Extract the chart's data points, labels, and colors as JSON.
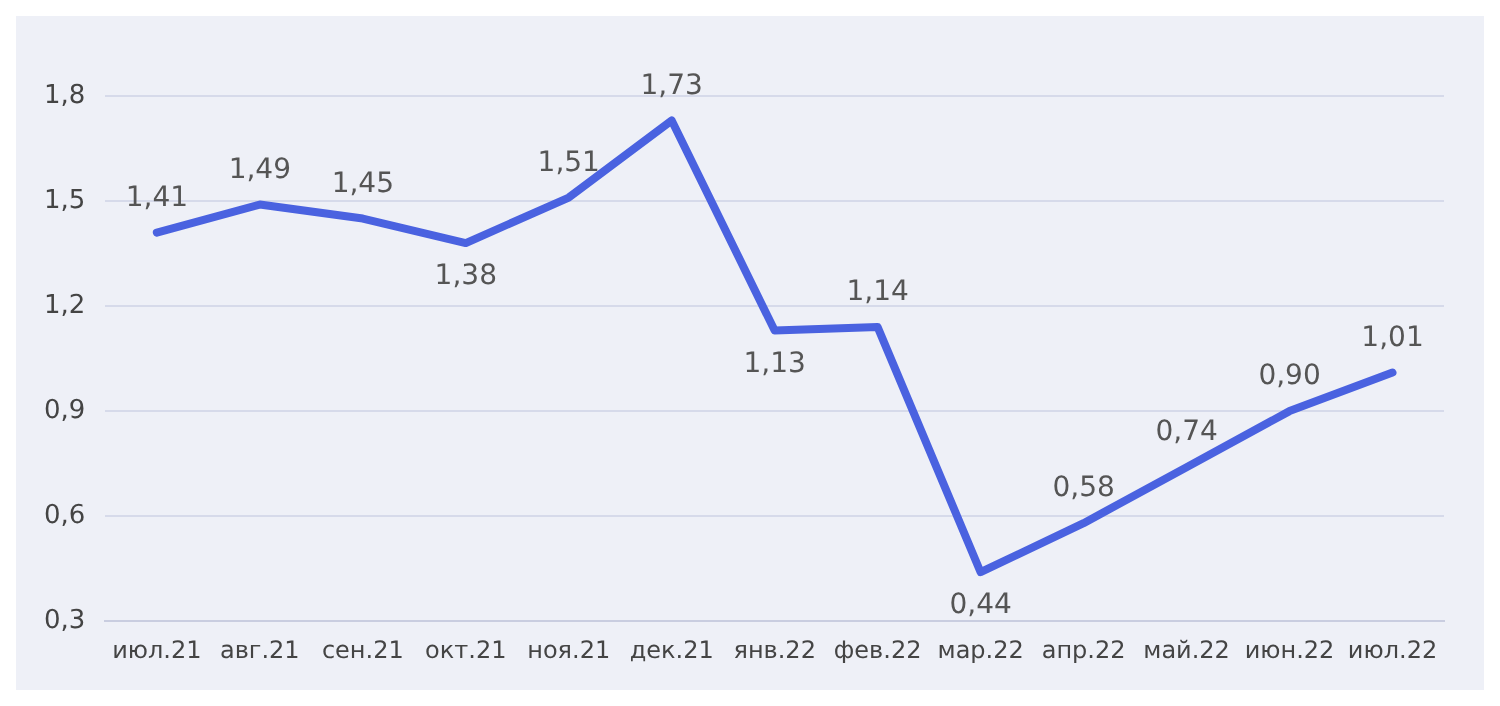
{
  "chart_data": {
    "type": "line",
    "categories": [
      "июл.21",
      "авг.21",
      "сен.21",
      "окт.21",
      "ноя.21",
      "дек.21",
      "янв.22",
      "фев.22",
      "мар.22",
      "апр.22",
      "май.22",
      "июн.22",
      "июл.22"
    ],
    "series": [
      {
        "color": "#4a62e0",
        "values": [
          1.41,
          1.49,
          1.45,
          1.38,
          1.51,
          1.73,
          1.13,
          1.14,
          0.44,
          0.58,
          0.74,
          0.9,
          1.01
        ],
        "value_labels": [
          "1,41",
          "1,49",
          "1,45",
          "1,38",
          "1,51",
          "1,73",
          "1,13",
          "1,14",
          "0,44",
          "0,58",
          "0,74",
          "0,90",
          "1,01"
        ]
      }
    ],
    "ylim": [
      0.3,
      1.8
    ],
    "yticks": [
      {
        "value": 0.3,
        "label": "0,3"
      },
      {
        "value": 0.6,
        "label": "0,6"
      },
      {
        "value": 0.9,
        "label": "0,9"
      },
      {
        "value": 1.2,
        "label": "1,2"
      },
      {
        "value": 1.5,
        "label": "1,5"
      },
      {
        "value": 1.8,
        "label": "1,8"
      }
    ],
    "grid": "y",
    "legend": false,
    "marker": "none",
    "line_style": "solid"
  }
}
